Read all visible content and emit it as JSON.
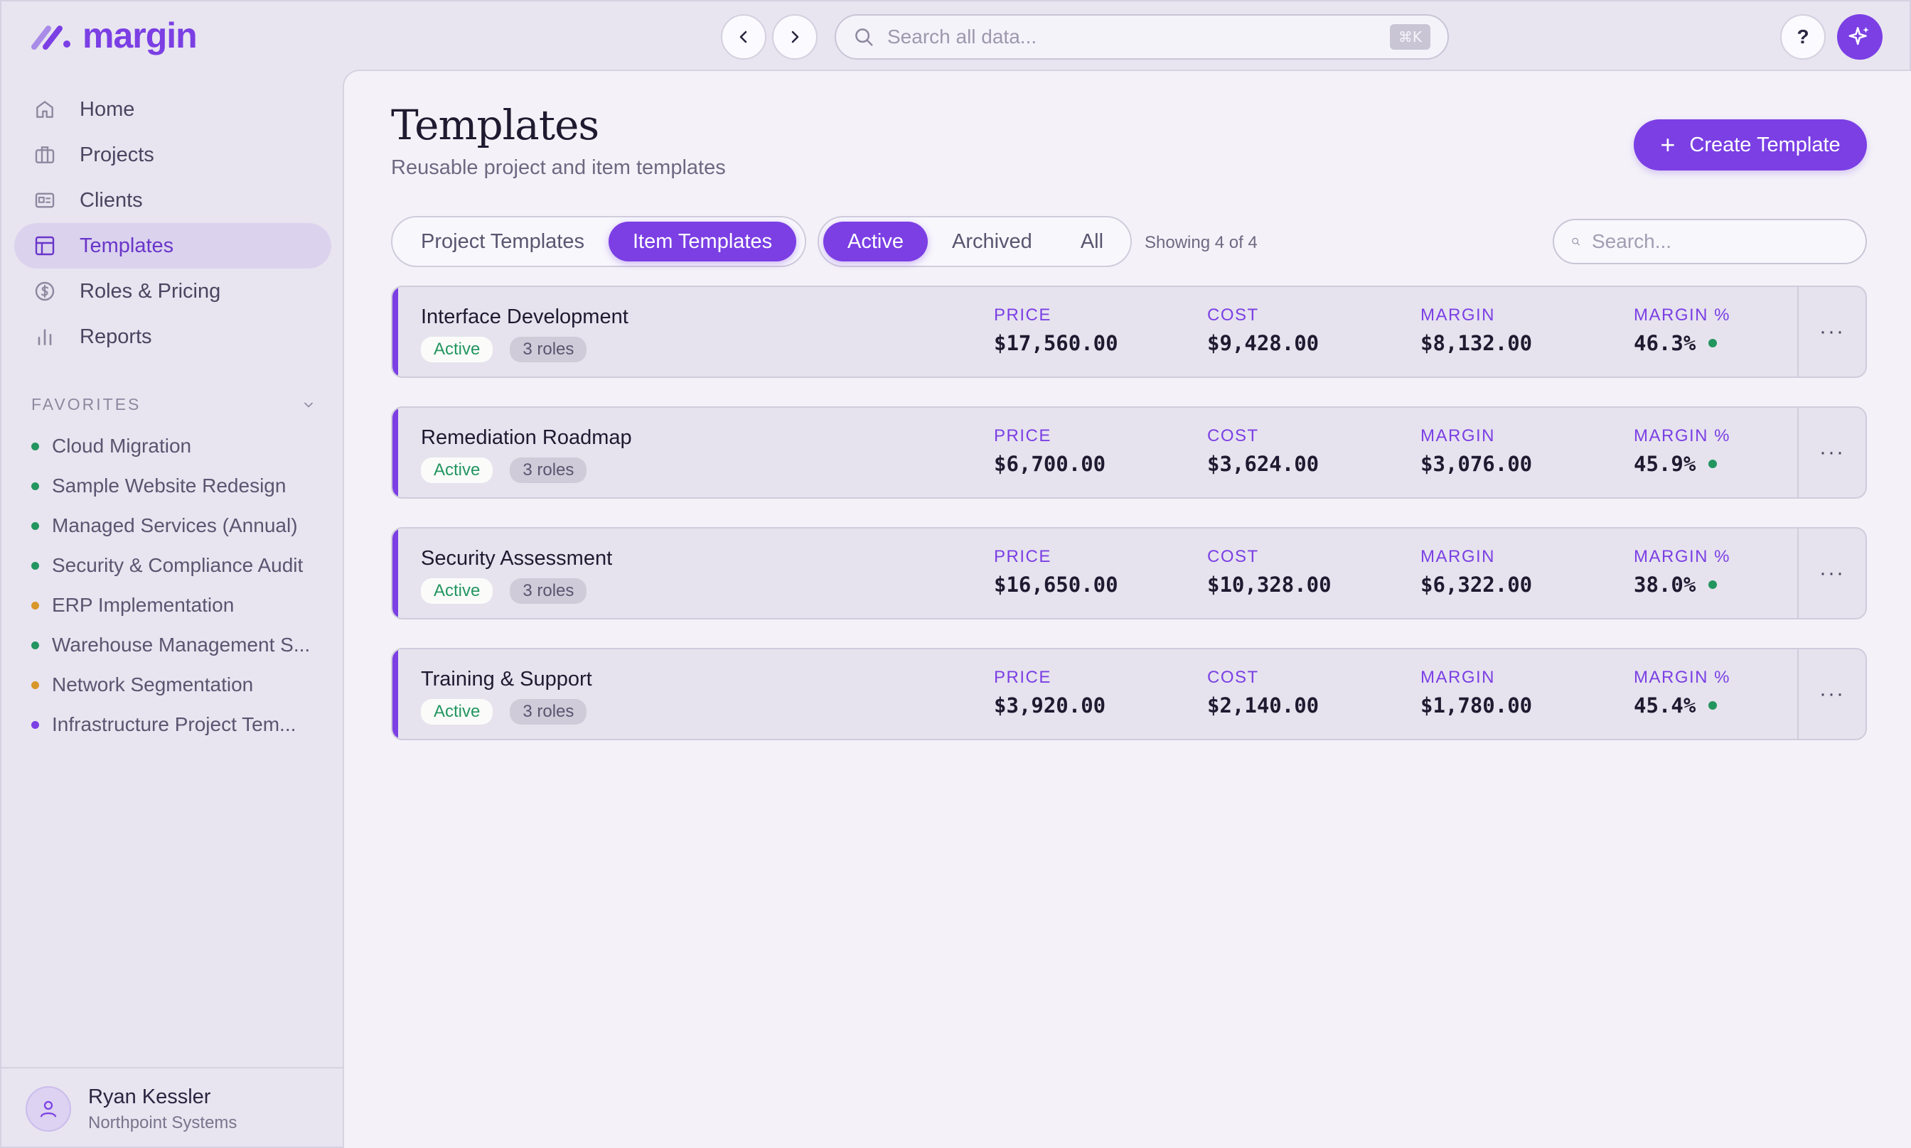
{
  "brand": {
    "name": "margin",
    "accent": "#7b3fe4"
  },
  "topbar": {
    "search_placeholder": "Search all data...",
    "search_shortcut": "⌘K",
    "help_label": "?"
  },
  "sidebar": {
    "items": [
      {
        "label": "Home",
        "icon": "home-icon"
      },
      {
        "label": "Projects",
        "icon": "briefcase-icon"
      },
      {
        "label": "Clients",
        "icon": "id-card-icon"
      },
      {
        "label": "Templates",
        "icon": "layout-icon",
        "active": true
      },
      {
        "label": "Roles & Pricing",
        "icon": "dollar-circle-icon"
      },
      {
        "label": "Reports",
        "icon": "bar-chart-icon"
      }
    ],
    "favorites_label": "FAVORITES",
    "favorites": [
      {
        "label": "Cloud Migration",
        "color": "#23955f"
      },
      {
        "label": "Sample Website Redesign",
        "color": "#23955f"
      },
      {
        "label": "Managed Services (Annual)",
        "color": "#23955f"
      },
      {
        "label": "Security & Compliance Audit",
        "color": "#23955f"
      },
      {
        "label": "ERP Implementation",
        "color": "#d9962a"
      },
      {
        "label": "Warehouse Management S...",
        "color": "#23955f"
      },
      {
        "label": "Network Segmentation",
        "color": "#d9962a"
      },
      {
        "label": "Infrastructure Project Tem...",
        "color": "#7b3fe4"
      }
    ],
    "user": {
      "name": "Ryan Kessler",
      "org": "Northpoint Systems"
    }
  },
  "main": {
    "title": "Templates",
    "subtitle": "Reusable project and item templates",
    "create_label": "Create Template",
    "type_tabs": [
      {
        "label": "Project Templates",
        "active": false
      },
      {
        "label": "Item Templates",
        "active": true
      }
    ],
    "status_tabs": [
      {
        "label": "Active",
        "active": true
      },
      {
        "label": "Archived",
        "active": false
      },
      {
        "label": "All",
        "active": false
      }
    ],
    "showing": "Showing 4 of 4",
    "search_placeholder": "Search...",
    "labels": {
      "price": "PRICE",
      "cost": "COST",
      "margin": "MARGIN",
      "margin_pct": "MARGIN %"
    },
    "templates": [
      {
        "name": "Interface Development",
        "status": "Active",
        "roles": "3 roles",
        "price": "$17,560.00",
        "cost": "$9,428.00",
        "margin": "$8,132.00",
        "margin_pct": "46.3%"
      },
      {
        "name": "Remediation Roadmap",
        "status": "Active",
        "roles": "3 roles",
        "price": "$6,700.00",
        "cost": "$3,624.00",
        "margin": "$3,076.00",
        "margin_pct": "45.9%"
      },
      {
        "name": "Security Assessment",
        "status": "Active",
        "roles": "3 roles",
        "price": "$16,650.00",
        "cost": "$10,328.00",
        "margin": "$6,322.00",
        "margin_pct": "38.0%"
      },
      {
        "name": "Training & Support",
        "status": "Active",
        "roles": "3 roles",
        "price": "$3,920.00",
        "cost": "$2,140.00",
        "margin": "$1,780.00",
        "margin_pct": "45.4%"
      }
    ]
  }
}
